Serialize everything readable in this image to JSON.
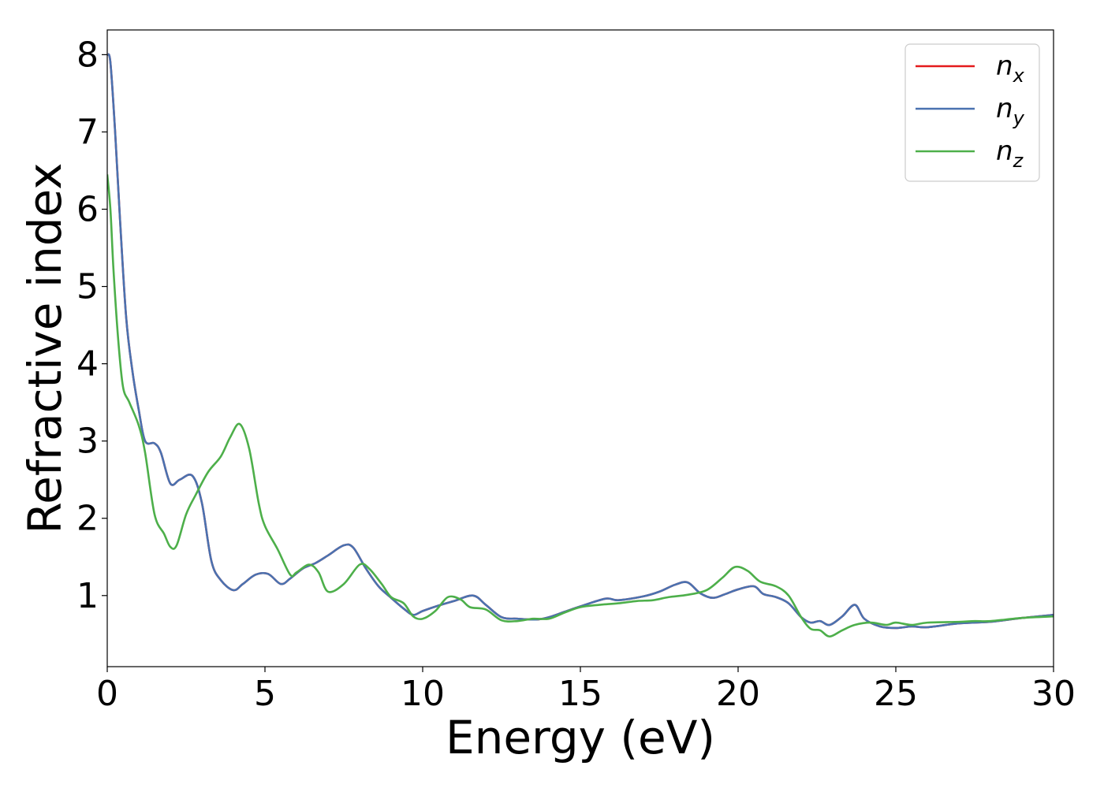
{
  "chart_data": {
    "type": "line",
    "xlabel": "Energy (eV)",
    "ylabel": "Refractive index",
    "xlim": [
      0,
      30
    ],
    "ylim": [
      0.08,
      8.32
    ],
    "xticks": [
      0,
      5,
      10,
      15,
      20,
      25,
      30
    ],
    "yticks": [
      1,
      2,
      3,
      4,
      5,
      6,
      7,
      8
    ],
    "grid": false,
    "legend_position": "top-right",
    "series": [
      {
        "name": "n_x",
        "label_base": "n",
        "label_sub": "x",
        "color": "#e41a1c",
        "x": [
          0,
          0.1,
          0.25,
          0.4,
          0.6,
          0.8,
          1.0,
          1.2,
          1.5,
          1.7,
          2.0,
          2.3,
          2.7,
          3.0,
          3.3,
          3.6,
          4.0,
          4.3,
          4.7,
          5.1,
          5.5,
          5.8,
          6.2,
          6.6,
          7.0,
          7.5,
          7.8,
          8.2,
          8.6,
          9.0,
          9.4,
          9.7,
          10.0,
          10.5,
          11.0,
          11.6,
          12.0,
          12.5,
          13.0,
          13.6,
          14.0,
          14.5,
          15.0,
          15.8,
          16.2,
          17.0,
          17.5,
          18.0,
          18.4,
          18.8,
          19.2,
          19.6,
          20.0,
          20.5,
          20.8,
          21.2,
          21.6,
          22.0,
          22.3,
          22.6,
          22.9,
          23.3,
          23.7,
          24.0,
          24.5,
          25.0,
          25.5,
          26.0,
          27.0,
          28.0,
          29.0,
          30.0
        ],
        "y": [
          8.0,
          7.9,
          7.0,
          5.9,
          4.6,
          3.9,
          3.4,
          3.0,
          2.97,
          2.85,
          2.45,
          2.5,
          2.55,
          2.2,
          1.45,
          1.2,
          1.07,
          1.15,
          1.27,
          1.28,
          1.15,
          1.22,
          1.35,
          1.42,
          1.52,
          1.65,
          1.62,
          1.35,
          1.12,
          0.97,
          0.83,
          0.75,
          0.8,
          0.87,
          0.93,
          1.0,
          0.88,
          0.72,
          0.7,
          0.69,
          0.72,
          0.79,
          0.86,
          0.96,
          0.94,
          0.99,
          1.05,
          1.14,
          1.17,
          1.03,
          0.97,
          1.02,
          1.08,
          1.12,
          1.02,
          0.98,
          0.9,
          0.72,
          0.65,
          0.67,
          0.62,
          0.73,
          0.88,
          0.7,
          0.6,
          0.58,
          0.6,
          0.59,
          0.64,
          0.66,
          0.71,
          0.75
        ]
      },
      {
        "name": "n_y",
        "label_base": "n",
        "label_sub": "y",
        "color": "#4a72b0",
        "x": [
          0,
          0.1,
          0.25,
          0.4,
          0.6,
          0.8,
          1.0,
          1.2,
          1.5,
          1.7,
          2.0,
          2.3,
          2.7,
          3.0,
          3.3,
          3.6,
          4.0,
          4.3,
          4.7,
          5.1,
          5.5,
          5.8,
          6.2,
          6.6,
          7.0,
          7.5,
          7.8,
          8.2,
          8.6,
          9.0,
          9.4,
          9.7,
          10.0,
          10.5,
          11.0,
          11.6,
          12.0,
          12.5,
          13.0,
          13.6,
          14.0,
          14.5,
          15.0,
          15.8,
          16.2,
          17.0,
          17.5,
          18.0,
          18.4,
          18.8,
          19.2,
          19.6,
          20.0,
          20.5,
          20.8,
          21.2,
          21.6,
          22.0,
          22.3,
          22.6,
          22.9,
          23.3,
          23.7,
          24.0,
          24.5,
          25.0,
          25.5,
          26.0,
          27.0,
          28.0,
          29.0,
          30.0
        ],
        "y": [
          8.0,
          7.9,
          7.0,
          5.9,
          4.6,
          3.9,
          3.4,
          3.0,
          2.97,
          2.85,
          2.45,
          2.5,
          2.55,
          2.2,
          1.45,
          1.2,
          1.07,
          1.15,
          1.27,
          1.28,
          1.15,
          1.22,
          1.35,
          1.42,
          1.52,
          1.65,
          1.62,
          1.35,
          1.12,
          0.97,
          0.83,
          0.75,
          0.8,
          0.87,
          0.93,
          1.0,
          0.88,
          0.72,
          0.7,
          0.69,
          0.72,
          0.79,
          0.86,
          0.96,
          0.94,
          0.99,
          1.05,
          1.14,
          1.17,
          1.03,
          0.97,
          1.02,
          1.08,
          1.12,
          1.02,
          0.98,
          0.9,
          0.72,
          0.65,
          0.67,
          0.62,
          0.73,
          0.88,
          0.7,
          0.6,
          0.58,
          0.6,
          0.59,
          0.64,
          0.66,
          0.71,
          0.75
        ]
      },
      {
        "name": "n_z",
        "label_base": "n",
        "label_sub": "z",
        "color": "#4daf4a",
        "x": [
          0,
          0.1,
          0.2,
          0.35,
          0.5,
          0.7,
          1.0,
          1.2,
          1.5,
          1.8,
          2.0,
          2.2,
          2.5,
          2.8,
          3.2,
          3.6,
          3.9,
          4.2,
          4.5,
          4.8,
          5.0,
          5.4,
          5.8,
          6.0,
          6.4,
          6.7,
          7.0,
          7.5,
          8.0,
          8.3,
          8.7,
          9.0,
          9.4,
          9.7,
          10.0,
          10.4,
          10.8,
          11.2,
          11.5,
          12.0,
          12.5,
          13.0,
          13.5,
          14.0,
          14.5,
          15.0,
          15.6,
          16.2,
          16.8,
          17.3,
          17.8,
          18.4,
          19.0,
          19.5,
          19.9,
          20.3,
          20.7,
          21.2,
          21.6,
          22.0,
          22.3,
          22.6,
          22.9,
          23.3,
          23.7,
          24.2,
          24.7,
          25.0,
          25.5,
          26.0,
          27.0,
          27.5,
          28.0,
          29.0,
          30.0
        ],
        "y": [
          6.45,
          6.0,
          5.2,
          4.3,
          3.7,
          3.5,
          3.2,
          2.85,
          2.05,
          1.8,
          1.63,
          1.65,
          2.05,
          2.3,
          2.6,
          2.8,
          3.05,
          3.22,
          2.9,
          2.2,
          1.9,
          1.6,
          1.27,
          1.3,
          1.4,
          1.3,
          1.05,
          1.15,
          1.4,
          1.35,
          1.15,
          0.98,
          0.9,
          0.73,
          0.7,
          0.8,
          0.98,
          0.95,
          0.85,
          0.82,
          0.68,
          0.67,
          0.7,
          0.7,
          0.78,
          0.85,
          0.88,
          0.9,
          0.93,
          0.94,
          0.98,
          1.01,
          1.07,
          1.23,
          1.37,
          1.32,
          1.18,
          1.12,
          1.0,
          0.72,
          0.57,
          0.55,
          0.47,
          0.55,
          0.62,
          0.65,
          0.62,
          0.65,
          0.62,
          0.65,
          0.66,
          0.67,
          0.67,
          0.71,
          0.73
        ]
      }
    ]
  }
}
